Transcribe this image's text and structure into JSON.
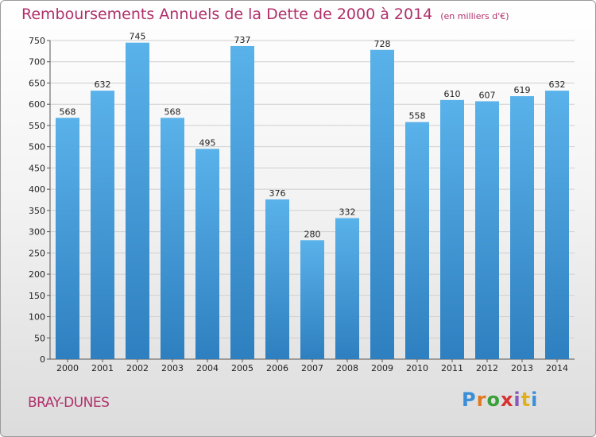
{
  "chart_data": {
    "type": "bar",
    "title": "Remboursements Annuels de la Dette de 2000 à 2014",
    "subtitle": "(en milliers d'€)",
    "categories": [
      "2000",
      "2001",
      "2002",
      "2003",
      "2004",
      "2005",
      "2006",
      "2007",
      "2008",
      "2009",
      "2010",
      "2011",
      "2012",
      "2013",
      "2014"
    ],
    "values": [
      568,
      632,
      745,
      568,
      495,
      737,
      376,
      280,
      332,
      728,
      558,
      610,
      607,
      619,
      632
    ],
    "ylim": [
      0,
      750
    ],
    "yticks": [
      0,
      50,
      100,
      150,
      200,
      250,
      300,
      350,
      400,
      450,
      500,
      550,
      600,
      650,
      700,
      750
    ],
    "grid": true,
    "bar_color_top": "#5ab2ea",
    "bar_color_bottom": "#2e7fbf"
  },
  "footer": {
    "city": "BRAY-DUNES",
    "logo_letters": [
      "P",
      "r",
      "o",
      "x",
      "i",
      "t",
      "i"
    ],
    "logo_colors": [
      "#3a8fd6",
      "#e07a1f",
      "#3aa03a",
      "#d93030",
      "#8a5ab8",
      "#e0b020",
      "#3a8fd6"
    ]
  }
}
